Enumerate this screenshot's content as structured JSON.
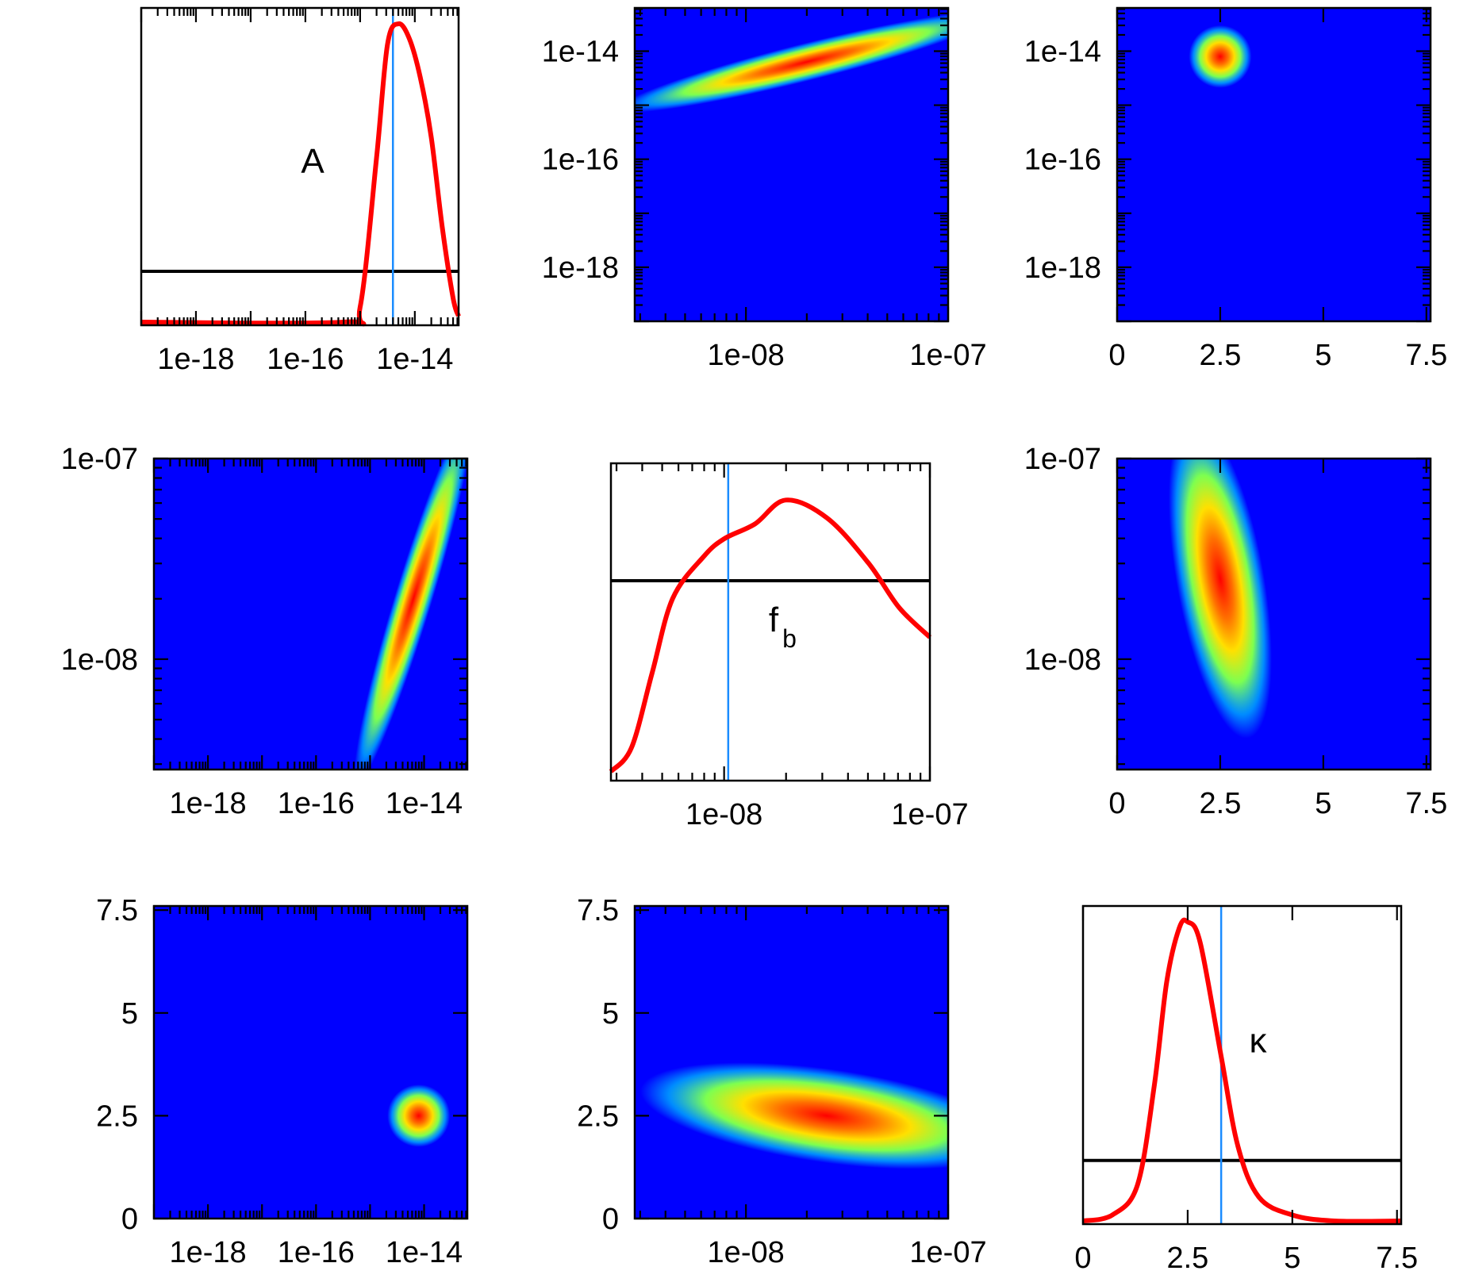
{
  "chart_data": {
    "type": "corner",
    "title": "",
    "parameters": [
      {
        "key": "A",
        "label": "A",
        "scale": "log10",
        "range": [
          -19,
          -13.2
        ],
        "ticks": [
          -18,
          -16,
          -14
        ],
        "tick_labels": [
          "1e-18",
          "1e-16",
          "1e-14"
        ],
        "true_value": -14.4,
        "threshold": 0.17
      },
      {
        "key": "fb",
        "label": "f",
        "label_sub": "b",
        "scale": "log10",
        "range": [
          -8.55,
          -7.0
        ],
        "ticks": [
          -8,
          -7
        ],
        "tick_labels": [
          "1e-08",
          "1e-07"
        ],
        "true_value": -7.98,
        "threshold": 0.63
      },
      {
        "key": "kappa",
        "label": "κ",
        "scale": "linear",
        "range": [
          0,
          7.6
        ],
        "ticks": [
          0,
          2.5,
          5,
          7.5
        ],
        "tick_labels": [
          "0",
          "2.5",
          "5",
          "7.5"
        ],
        "true_value": 3.3,
        "threshold": 0.2
      }
    ],
    "diagonal": [
      {
        "param": "A",
        "x": [
          -19.0,
          -15.3,
          -15.0,
          -14.7,
          -14.5,
          -14.3,
          -14.1,
          -13.9,
          -13.7,
          -13.5,
          -13.3,
          -13.2
        ],
        "y": [
          0.0,
          0.0,
          0.05,
          0.55,
          0.93,
          1.0,
          0.95,
          0.82,
          0.62,
          0.32,
          0.08,
          0.02
        ]
      },
      {
        "param": "fb",
        "x": [
          -8.55,
          -8.45,
          -8.35,
          -8.25,
          -8.1,
          -8.0,
          -7.85,
          -7.7,
          -7.5,
          -7.3,
          -7.15,
          -7.0
        ],
        "y": [
          0.02,
          0.1,
          0.35,
          0.6,
          0.74,
          0.8,
          0.85,
          0.93,
          0.87,
          0.72,
          0.57,
          0.47
        ]
      },
      {
        "param": "kappa",
        "x": [
          0,
          0.7,
          1.3,
          1.7,
          2.0,
          2.3,
          2.5,
          2.8,
          3.3,
          3.7,
          4.2,
          5.0,
          6.0,
          7.6
        ],
        "y": [
          0.0,
          0.02,
          0.12,
          0.45,
          0.8,
          0.98,
          1.0,
          0.93,
          0.55,
          0.25,
          0.08,
          0.02,
          0.0,
          0.0
        ]
      }
    ],
    "joint_peaks": [
      {
        "x_param": "fb",
        "y_param": "A",
        "peak": [
          -7.7,
          -14.2
        ],
        "shape": "ridge"
      },
      {
        "x_param": "kappa",
        "y_param": "A",
        "peak": [
          2.5,
          -14.1
        ],
        "shape": "blob"
      },
      {
        "x_param": "A",
        "y_param": "fb",
        "peak": [
          -14.2,
          -7.7
        ],
        "shape": "ridge"
      },
      {
        "x_param": "kappa",
        "y_param": "fb",
        "peak": [
          2.5,
          -7.6
        ],
        "shape": "banana"
      },
      {
        "x_param": "A",
        "y_param": "kappa",
        "peak": [
          -14.1,
          2.5
        ],
        "shape": "blob"
      },
      {
        "x_param": "fb",
        "y_param": "kappa",
        "peak": [
          -7.6,
          2.5
        ],
        "shape": "banana"
      }
    ],
    "colormap": [
      "#0000ff",
      "#00c8ff",
      "#7dff50",
      "#ffe000",
      "#ff7000",
      "#ff0000"
    ],
    "line_colors": {
      "posterior": "#ff0000",
      "truth": "#1a8cff",
      "threshold": "#000000"
    }
  }
}
